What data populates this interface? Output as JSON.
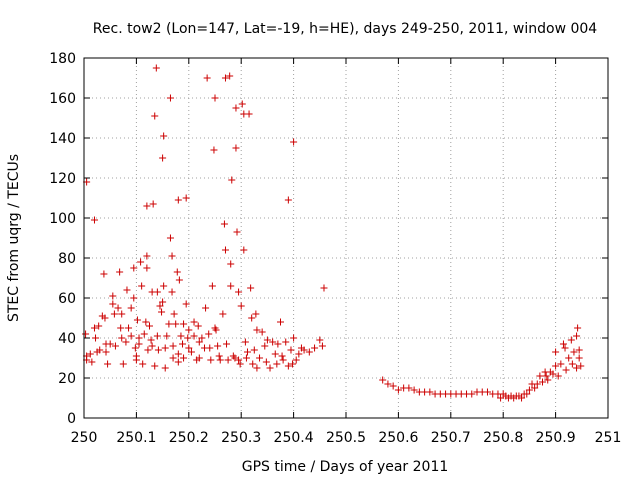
{
  "chart_data": {
    "type": "scatter",
    "title": "Rec. tow2 (Lon=147, Lat=-19, h=HE), days 249-250, 2011, window 004",
    "xlabel": "GPS time / Days of year 2011",
    "ylabel": "STEC from uqrg / TECUs",
    "xlim": [
      250,
      251
    ],
    "ylim": [
      0,
      180
    ],
    "xticks": [
      250,
      250.1,
      250.2,
      250.3,
      250.4,
      250.5,
      250.6,
      250.7,
      250.8,
      250.9,
      251
    ],
    "xtick_labels": [
      "250",
      "250.1",
      "250.2",
      "250.3",
      "250.4",
      "250.5",
      "250.6",
      "250.7",
      "250.8",
      "250.9",
      "251"
    ],
    "yticks": [
      0,
      20,
      40,
      60,
      80,
      100,
      120,
      140,
      160,
      180
    ],
    "ytick_labels": [
      "0",
      "20",
      "40",
      "60",
      "80",
      "100",
      "120",
      "140",
      "160",
      "180"
    ],
    "grid": true,
    "marker": "plus",
    "color": "#cc0000",
    "points": [
      [
        250.005,
        118
      ],
      [
        250.003,
        42
      ],
      [
        250.005,
        31
      ],
      [
        250.005,
        29
      ],
      [
        250.012,
        32
      ],
      [
        250.015,
        28
      ],
      [
        250.02,
        99
      ],
      [
        250.02,
        45
      ],
      [
        250.022,
        40
      ],
      [
        250.025,
        33
      ],
      [
        250.028,
        46
      ],
      [
        250.03,
        34
      ],
      [
        250.035,
        51
      ],
      [
        250.038,
        72
      ],
      [
        250.04,
        50
      ],
      [
        250.042,
        37
      ],
      [
        250.042,
        33
      ],
      [
        250.045,
        27
      ],
      [
        250.05,
        37
      ],
      [
        250.055,
        61
      ],
      [
        250.055,
        57
      ],
      [
        250.058,
        52
      ],
      [
        250.06,
        36
      ],
      [
        250.065,
        55
      ],
      [
        250.068,
        73
      ],
      [
        250.07,
        45
      ],
      [
        250.072,
        52
      ],
      [
        250.072,
        40
      ],
      [
        250.075,
        27
      ],
      [
        250.08,
        38
      ],
      [
        250.082,
        64
      ],
      [
        250.085,
        45
      ],
      [
        250.09,
        55
      ],
      [
        250.09,
        41
      ],
      [
        250.095,
        75
      ],
      [
        250.095,
        60
      ],
      [
        250.098,
        35
      ],
      [
        250.1,
        29
      ],
      [
        250.1,
        31
      ],
      [
        250.102,
        49
      ],
      [
        250.105,
        40
      ],
      [
        250.105,
        37
      ],
      [
        250.108,
        78
      ],
      [
        250.11,
        66
      ],
      [
        250.112,
        27
      ],
      [
        250.115,
        42
      ],
      [
        250.118,
        48
      ],
      [
        250.12,
        75
      ],
      [
        250.12,
        81
      ],
      [
        250.12,
        106
      ],
      [
        250.122,
        34
      ],
      [
        250.125,
        46
      ],
      [
        250.128,
        39
      ],
      [
        250.13,
        36
      ],
      [
        250.13,
        63
      ],
      [
        250.132,
        107
      ],
      [
        250.135,
        151
      ],
      [
        250.135,
        26
      ],
      [
        250.138,
        175
      ],
      [
        250.14,
        63
      ],
      [
        250.14,
        41
      ],
      [
        250.142,
        34
      ],
      [
        250.145,
        56
      ],
      [
        250.148,
        53
      ],
      [
        250.15,
        58
      ],
      [
        250.15,
        130
      ],
      [
        250.152,
        141
      ],
      [
        250.152,
        66
      ],
      [
        250.155,
        35
      ],
      [
        250.155,
        25
      ],
      [
        250.158,
        41
      ],
      [
        250.162,
        47
      ],
      [
        250.165,
        160
      ],
      [
        250.165,
        90
      ],
      [
        250.168,
        63
      ],
      [
        250.168,
        81
      ],
      [
        250.17,
        36
      ],
      [
        250.17,
        30
      ],
      [
        250.172,
        52
      ],
      [
        250.175,
        47
      ],
      [
        250.178,
        73
      ],
      [
        250.18,
        109
      ],
      [
        250.18,
        32
      ],
      [
        250.18,
        28
      ],
      [
        250.182,
        69
      ],
      [
        250.185,
        41
      ],
      [
        250.188,
        37
      ],
      [
        250.19,
        47
      ],
      [
        250.19,
        30
      ],
      [
        250.195,
        110
      ],
      [
        250.195,
        57
      ],
      [
        250.198,
        40
      ],
      [
        250.2,
        35
      ],
      [
        250.2,
        44
      ],
      [
        250.205,
        33
      ],
      [
        250.21,
        48
      ],
      [
        250.21,
        41
      ],
      [
        250.215,
        29
      ],
      [
        250.218,
        46
      ],
      [
        250.22,
        38
      ],
      [
        250.22,
        30
      ],
      [
        250.225,
        40
      ],
      [
        250.23,
        35
      ],
      [
        250.232,
        55
      ],
      [
        250.235,
        170
      ],
      [
        250.238,
        42
      ],
      [
        250.24,
        35
      ],
      [
        250.242,
        29
      ],
      [
        250.245,
        66
      ],
      [
        250.248,
        134
      ],
      [
        250.25,
        160
      ],
      [
        250.25,
        45
      ],
      [
        250.252,
        44
      ],
      [
        250.255,
        36
      ],
      [
        250.258,
        31
      ],
      [
        250.26,
        29
      ],
      [
        250.265,
        52
      ],
      [
        250.268,
        97
      ],
      [
        250.27,
        84
      ],
      [
        250.27,
        170
      ],
      [
        250.272,
        37
      ],
      [
        250.275,
        29
      ],
      [
        250.278,
        171
      ],
      [
        250.28,
        77
      ],
      [
        250.28,
        66
      ],
      [
        250.282,
        119
      ],
      [
        250.285,
        31
      ],
      [
        250.288,
        30
      ],
      [
        250.29,
        155
      ],
      [
        250.29,
        135
      ],
      [
        250.292,
        93
      ],
      [
        250.295,
        63
      ],
      [
        250.295,
        29
      ],
      [
        250.298,
        27
      ],
      [
        250.3,
        56
      ],
      [
        250.302,
        157
      ],
      [
        250.305,
        152
      ],
      [
        250.305,
        84
      ],
      [
        250.308,
        38
      ],
      [
        250.31,
        30
      ],
      [
        250.312,
        33
      ],
      [
        250.315,
        152
      ],
      [
        250.318,
        65
      ],
      [
        250.32,
        50
      ],
      [
        250.322,
        27
      ],
      [
        250.325,
        34
      ],
      [
        250.328,
        52
      ],
      [
        250.33,
        44
      ],
      [
        250.33,
        25
      ],
      [
        250.335,
        30
      ],
      [
        250.34,
        43
      ],
      [
        250.345,
        36
      ],
      [
        250.348,
        28
      ],
      [
        250.35,
        39
      ],
      [
        250.355,
        25
      ],
      [
        250.36,
        38
      ],
      [
        250.365,
        32
      ],
      [
        250.368,
        27
      ],
      [
        250.37,
        37
      ],
      [
        250.375,
        48
      ],
      [
        250.378,
        31
      ],
      [
        250.38,
        29
      ],
      [
        250.385,
        38
      ],
      [
        250.39,
        109
      ],
      [
        250.39,
        26
      ],
      [
        250.395,
        34
      ],
      [
        250.398,
        27
      ],
      [
        250.4,
        138
      ],
      [
        250.4,
        40
      ],
      [
        250.405,
        29
      ],
      [
        250.41,
        32
      ],
      [
        250.415,
        35
      ],
      [
        250.42,
        34
      ],
      [
        250.43,
        33
      ],
      [
        250.44,
        35
      ],
      [
        250.45,
        39
      ],
      [
        250.455,
        36
      ],
      [
        250.458,
        65
      ],
      [
        250.57,
        19
      ],
      [
        250.58,
        17
      ],
      [
        250.59,
        16
      ],
      [
        250.6,
        14
      ],
      [
        250.61,
        15
      ],
      [
        250.62,
        15
      ],
      [
        250.63,
        14
      ],
      [
        250.64,
        13
      ],
      [
        250.65,
        13
      ],
      [
        250.66,
        13
      ],
      [
        250.67,
        12
      ],
      [
        250.68,
        12
      ],
      [
        250.69,
        12
      ],
      [
        250.7,
        12
      ],
      [
        250.71,
        12
      ],
      [
        250.72,
        12
      ],
      [
        250.73,
        12
      ],
      [
        250.74,
        12
      ],
      [
        250.75,
        13
      ],
      [
        250.76,
        13
      ],
      [
        250.77,
        13
      ],
      [
        250.78,
        12
      ],
      [
        250.79,
        12
      ],
      [
        250.795,
        10
      ],
      [
        250.8,
        12
      ],
      [
        250.805,
        11
      ],
      [
        250.81,
        10
      ],
      [
        250.815,
        11
      ],
      [
        250.82,
        10
      ],
      [
        250.825,
        11
      ],
      [
        250.83,
        11
      ],
      [
        250.835,
        10
      ],
      [
        250.84,
        12
      ],
      [
        250.845,
        12
      ],
      [
        250.85,
        14
      ],
      [
        250.855,
        17
      ],
      [
        250.86,
        15
      ],
      [
        250.865,
        17
      ],
      [
        250.87,
        21
      ],
      [
        250.875,
        18
      ],
      [
        250.88,
        23
      ],
      [
        250.882,
        21
      ],
      [
        250.885,
        19
      ],
      [
        250.89,
        23
      ],
      [
        250.895,
        22
      ],
      [
        250.9,
        33
      ],
      [
        250.9,
        26
      ],
      [
        250.905,
        21
      ],
      [
        250.91,
        27
      ],
      [
        250.915,
        37
      ],
      [
        250.918,
        35
      ],
      [
        250.92,
        24
      ],
      [
        250.925,
        30
      ],
      [
        250.93,
        39
      ],
      [
        250.932,
        27
      ],
      [
        250.935,
        33
      ],
      [
        250.94,
        25
      ],
      [
        250.94,
        41
      ],
      [
        250.942,
        45
      ],
      [
        250.945,
        34
      ],
      [
        250.945,
        30
      ],
      [
        250.948,
        26
      ]
    ]
  }
}
